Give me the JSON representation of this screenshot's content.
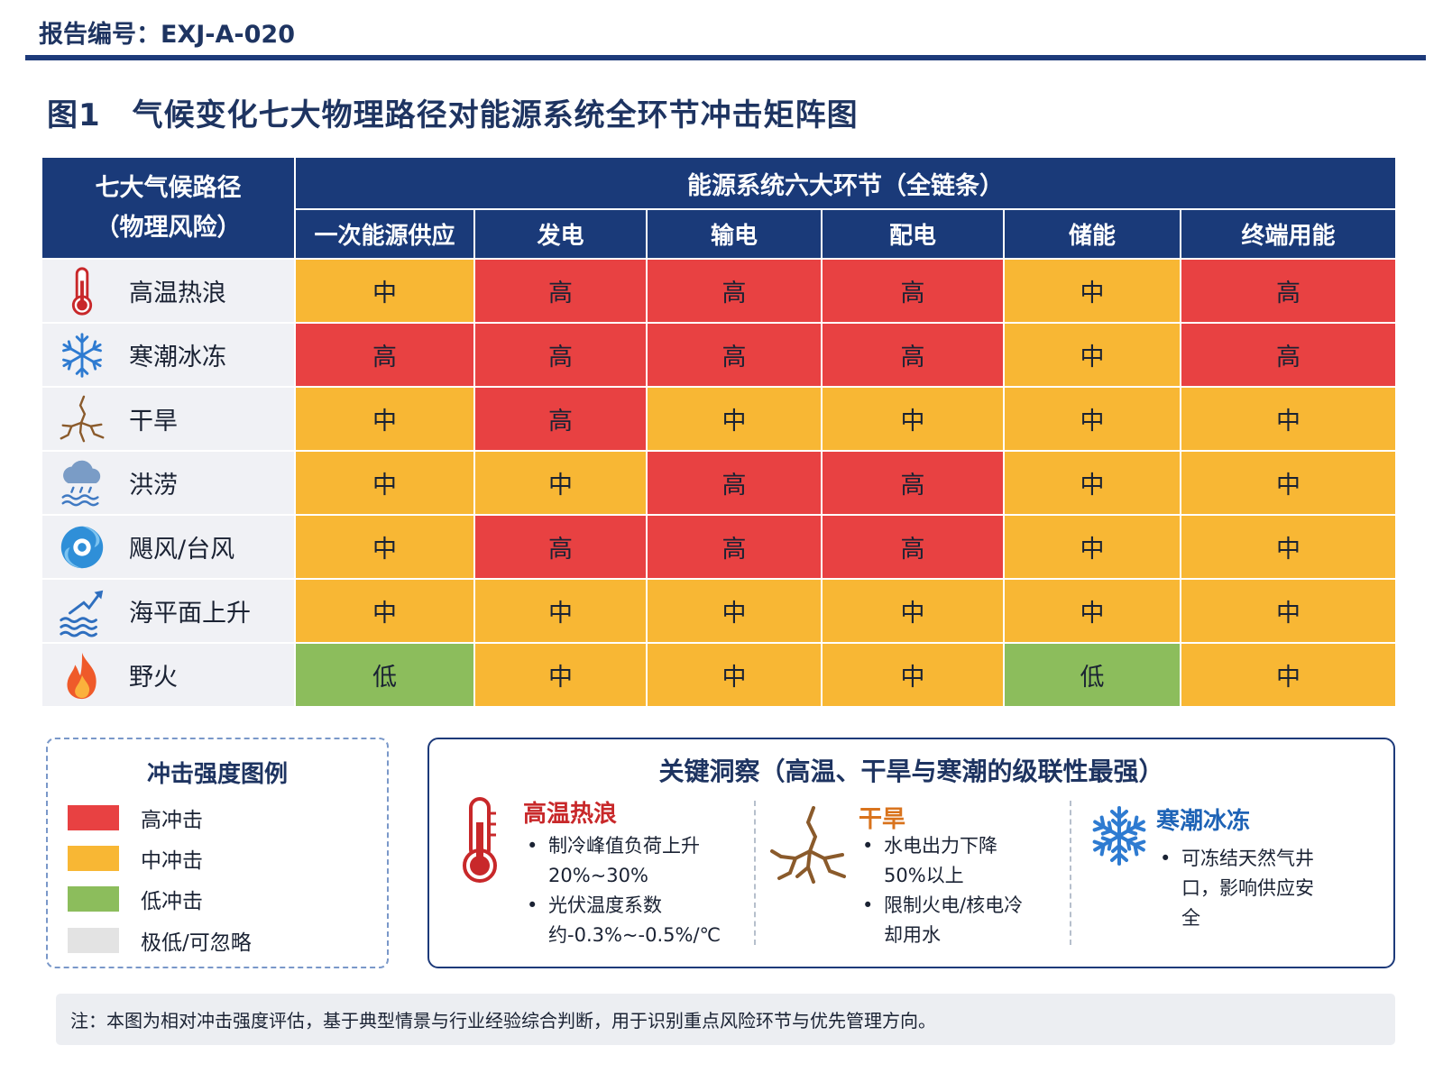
{
  "report_no": "报告编号：EXJ-A-020",
  "figure_title": "图1　气候变化七大物理路径对能源系统全环节冲击矩阵图",
  "chart_data": {
    "type": "table",
    "corner_header": [
      "七大气候路径",
      "（物理风险）"
    ],
    "group_header": "能源系统六大环节（全链条）",
    "columns": [
      "一次能源供应",
      "发电",
      "输电",
      "配电",
      "储能",
      "终端用能"
    ],
    "rows": [
      {
        "label": "高温热浪",
        "icon": "thermometer-icon",
        "values": [
          "中",
          "高",
          "高",
          "高",
          "中",
          "高"
        ]
      },
      {
        "label": "寒潮冰冻",
        "icon": "snowflake-icon",
        "values": [
          "高",
          "高",
          "高",
          "高",
          "中",
          "高"
        ]
      },
      {
        "label": "干旱",
        "icon": "cracked-ground-icon",
        "values": [
          "中",
          "高",
          "中",
          "中",
          "中",
          "中"
        ]
      },
      {
        "label": "洪涝",
        "icon": "rain-cloud-flood-icon",
        "values": [
          "中",
          "中",
          "高",
          "高",
          "中",
          "中"
        ]
      },
      {
        "label": "飓风/台风",
        "icon": "hurricane-icon",
        "values": [
          "中",
          "高",
          "高",
          "高",
          "中",
          "中"
        ]
      },
      {
        "label": "海平面上升",
        "icon": "rising-waves-icon",
        "values": [
          "中",
          "中",
          "中",
          "中",
          "中",
          "中"
        ]
      },
      {
        "label": "野火",
        "icon": "flame-icon",
        "values": [
          "低",
          "中",
          "中",
          "中",
          "低",
          "中"
        ]
      }
    ],
    "level_colors": {
      "高": "#e84142",
      "中": "#f8b734",
      "低": "#8cbd5c"
    }
  },
  "legend": {
    "title": "冲击强度图例",
    "items": [
      {
        "label": "高冲击",
        "color": "#e84142"
      },
      {
        "label": "中冲击",
        "color": "#f8b734"
      },
      {
        "label": "低冲击",
        "color": "#8cbd5c"
      },
      {
        "label": "极低/可忽略",
        "color": "#e3e3e3"
      }
    ]
  },
  "insights": {
    "title": "关键洞察（高温、干旱与寒潮的级联性最强）",
    "blocks": [
      {
        "heading": "高温热浪",
        "icon": "thermometer-icon",
        "color": "#c8282a",
        "lines": [
          "制冷峰值负荷上升20%~30%",
          "光伏温度系数约-0.3%~-0.5%/℃"
        ]
      },
      {
        "heading": "干旱",
        "icon": "cracked-ground-icon",
        "color": "#d9731c",
        "lines": [
          "水电出力下降50%以上",
          "限制火电/核电冷却用水"
        ]
      },
      {
        "heading": "寒潮冰冻",
        "icon": "snowflake-icon",
        "color": "#1e63b6",
        "lines": [
          "可冻结天然气井口，影响供应安全"
        ]
      }
    ]
  },
  "note": "注：本图为相对冲击强度评估，基于典型情景与行业经验综合判断，用于识别重点风险环节与优先管理方向。"
}
